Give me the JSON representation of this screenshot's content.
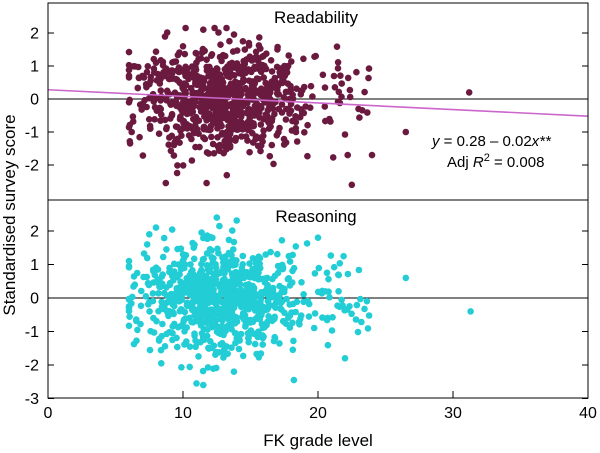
{
  "chart_data": {
    "type": "scatter",
    "xlabel": "FK grade level",
    "ylabel": "Standardised survey score",
    "xlim": [
      0,
      40
    ],
    "x_ticks": [
      0,
      10,
      20,
      30,
      40
    ],
    "x_tick_labels": [
      "0",
      "10",
      "20",
      "30",
      "40"
    ],
    "panels": [
      {
        "name": "readability",
        "title": "Readability",
        "ylim": [
          -3,
          2.6
        ],
        "y_ticks": [
          2,
          1,
          0,
          -1,
          -2
        ],
        "y_tick_labels": [
          "2",
          "1",
          "0",
          "-1",
          "-2"
        ],
        "color": "#6b1a3f",
        "fit_line": {
          "intercept": 0.28,
          "slope": -0.02,
          "color": "#cc66cc"
        },
        "annotation": {
          "equation": "y = 0.28 – 0.02x**",
          "eq_y": "y",
          "eq_mid": " = 0.28 – 0.02",
          "eq_x": "x",
          "eq_stars": "**",
          "adj_prefix": "Adj ",
          "adj_r": "R",
          "adj_sup": "2",
          "adj_value": " = 0.008"
        },
        "points_sample": [
          [
            6.0,
            -0.1
          ],
          [
            6.2,
            -1.0
          ],
          [
            7.0,
            0.7
          ],
          [
            8.0,
            1.1
          ],
          [
            11.5,
            2.1
          ],
          [
            22.5,
            -2.6
          ],
          [
            26.5,
            -1.0
          ],
          [
            31.2,
            0.2
          ],
          [
            24.0,
            -1.7
          ],
          [
            23.0,
            -0.3
          ]
        ]
      },
      {
        "name": "reasoning",
        "title": "Reasoning",
        "ylim": [
          -3,
          2.9
        ],
        "y_ticks": [
          2,
          1,
          0,
          -1,
          -2,
          -3
        ],
        "y_tick_labels": [
          "2",
          "1",
          "0",
          "-1",
          "-2",
          "-3"
        ],
        "color": "#22cdd5",
        "points_sample": [
          [
            6.0,
            1.1
          ],
          [
            7.5,
            1.9
          ],
          [
            8.0,
            2.1
          ],
          [
            12.5,
            2.4
          ],
          [
            11.5,
            -2.6
          ],
          [
            22.0,
            -1.8
          ],
          [
            26.5,
            0.6
          ],
          [
            31.3,
            -0.4
          ],
          [
            20.0,
            1.8
          ],
          [
            6.0,
            -0.3
          ]
        ]
      }
    ],
    "n_points_per_panel": 850
  }
}
